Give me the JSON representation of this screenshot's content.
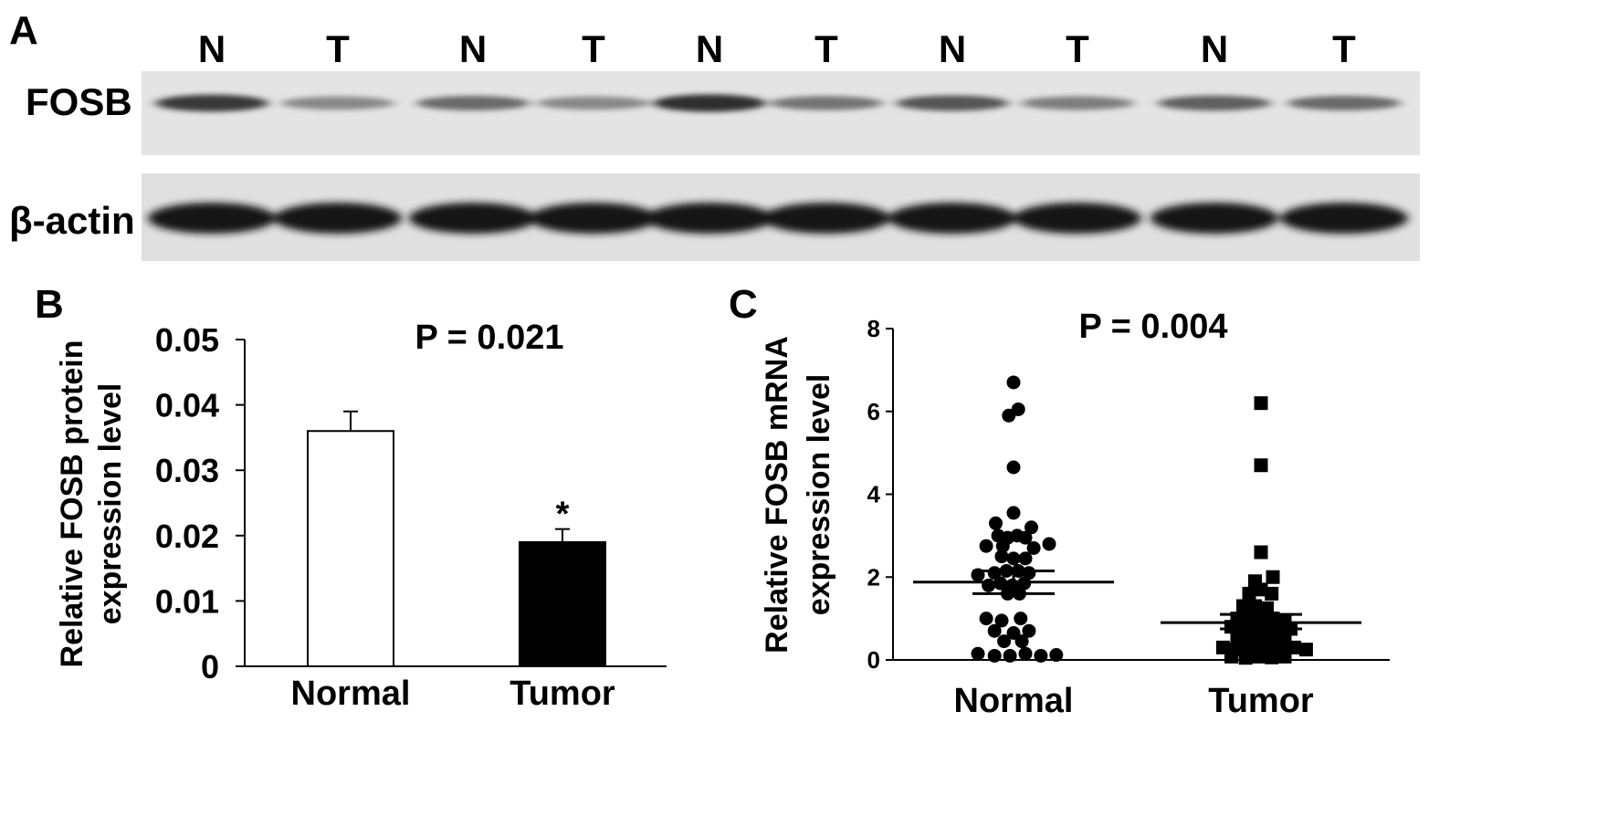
{
  "panel_a": {
    "letter": "A",
    "lanes": [
      "N",
      "T",
      "N",
      "T",
      "N",
      "T",
      "N",
      "T",
      "N",
      "T"
    ],
    "blots": [
      {
        "label": "FOSB",
        "band_intensity": [
          0.85,
          0.45,
          0.6,
          0.45,
          0.9,
          0.55,
          0.7,
          0.5,
          0.65,
          0.6
        ]
      },
      {
        "label": "β-actin",
        "band_intensity": [
          1,
          0.95,
          0.95,
          0.95,
          0.9,
          0.9,
          0.95,
          0.95,
          0.9,
          0.95
        ]
      }
    ]
  },
  "chart_data": [
    {
      "panel": "B",
      "type": "bar",
      "categories": [
        "Normal",
        "Tumor"
      ],
      "values": [
        0.036,
        0.019
      ],
      "errors": [
        0.003,
        0.002
      ],
      "bar_colors": [
        "#ffffff",
        "#000000"
      ],
      "ylim": [
        0,
        0.05
      ],
      "yticks": [
        "0",
        "0.01",
        "0.02",
        "0.03",
        "0.04",
        "0.05"
      ],
      "ylabel": [
        "Relative FOSB protein",
        "expression level"
      ],
      "annotation": "P = 0.021",
      "significance_marker": "*"
    },
    {
      "panel": "C",
      "type": "scatter",
      "categories": [
        "Normal",
        "Tumor"
      ],
      "ylim": [
        0,
        8
      ],
      "yticks": [
        "0",
        "2",
        "4",
        "6",
        "8"
      ],
      "ylabel": [
        "Relative FOSB mRNA",
        "expression level"
      ],
      "annotation": "P = 0.004",
      "series": [
        {
          "category": "Normal",
          "marker": "circle",
          "mean": 1.88,
          "sem": [
            1.6,
            2.15
          ],
          "points": [
            {
              "o": 0,
              "y": 6.7
            },
            {
              "o": -0.4,
              "y": 5.9
            },
            {
              "o": 0.4,
              "y": 6.05
            },
            {
              "o": 0,
              "y": 4.65
            },
            {
              "o": 0,
              "y": 3.55
            },
            {
              "o": -1.5,
              "y": 3.3
            },
            {
              "o": 1.5,
              "y": 3.2
            },
            {
              "o": -1.3,
              "y": 3.0
            },
            {
              "o": -0.5,
              "y": 2.95
            },
            {
              "o": 0.3,
              "y": 3.0
            },
            {
              "o": 1.0,
              "y": 2.95
            },
            {
              "o": -2.3,
              "y": 2.75
            },
            {
              "o": -0.9,
              "y": 2.75
            },
            {
              "o": 1.7,
              "y": 2.7
            },
            {
              "o": 3.0,
              "y": 2.8
            },
            {
              "o": -1.0,
              "y": 2.5
            },
            {
              "o": 0.0,
              "y": 2.45
            },
            {
              "o": 1.0,
              "y": 2.45
            },
            {
              "o": -1.6,
              "y": 2.1
            },
            {
              "o": -0.6,
              "y": 2.15
            },
            {
              "o": 0.4,
              "y": 2.15
            },
            {
              "o": 1.3,
              "y": 2.1
            },
            {
              "o": -3.0,
              "y": 2.05
            },
            {
              "o": -2.1,
              "y": 1.8
            },
            {
              "o": -1.1,
              "y": 1.85
            },
            {
              "o": -0.1,
              "y": 1.8
            },
            {
              "o": 0.9,
              "y": 1.85
            },
            {
              "o": -0.5,
              "y": 1.6
            },
            {
              "o": 0.5,
              "y": 1.6
            },
            {
              "o": -2.3,
              "y": 1.0
            },
            {
              "o": -1.0,
              "y": 0.95
            },
            {
              "o": 0.6,
              "y": 1.0
            },
            {
              "o": -1.6,
              "y": 0.7
            },
            {
              "o": 0.0,
              "y": 0.65
            },
            {
              "o": 1.3,
              "y": 0.7
            },
            {
              "o": -0.8,
              "y": 0.45
            },
            {
              "o": 0.7,
              "y": 0.45
            },
            {
              "o": -3.0,
              "y": 0.15
            },
            {
              "o": -1.6,
              "y": 0.1
            },
            {
              "o": -0.3,
              "y": 0.1
            },
            {
              "o": 1.0,
              "y": 0.15
            },
            {
              "o": 2.3,
              "y": 0.1
            },
            {
              "o": 3.6,
              "y": 0.12
            }
          ]
        },
        {
          "category": "Tumor",
          "marker": "square",
          "mean": 0.9,
          "sem": [
            0.75,
            1.1
          ],
          "points": [
            {
              "o": 0,
              "y": 6.2
            },
            {
              "o": 0,
              "y": 4.7
            },
            {
              "o": 0,
              "y": 2.6
            },
            {
              "o": -0.5,
              "y": 1.9
            },
            {
              "o": 1.0,
              "y": 2.0
            },
            {
              "o": -1.0,
              "y": 1.6
            },
            {
              "o": 0.0,
              "y": 1.7
            },
            {
              "o": 0.9,
              "y": 1.6
            },
            {
              "o": -1.5,
              "y": 1.3
            },
            {
              "o": -0.5,
              "y": 1.3
            },
            {
              "o": 0.5,
              "y": 1.25
            },
            {
              "o": -2.0,
              "y": 1.0
            },
            {
              "o": -1.0,
              "y": 1.05
            },
            {
              "o": 0.0,
              "y": 1.0
            },
            {
              "o": 1.0,
              "y": 1.0
            },
            {
              "o": 2.0,
              "y": 0.95
            },
            {
              "o": -2.5,
              "y": 0.8
            },
            {
              "o": -1.5,
              "y": 0.75
            },
            {
              "o": -0.5,
              "y": 0.75
            },
            {
              "o": 0.5,
              "y": 0.75
            },
            {
              "o": 1.5,
              "y": 0.8
            },
            {
              "o": 2.5,
              "y": 0.75
            },
            {
              "o": -2.0,
              "y": 0.5
            },
            {
              "o": -1.0,
              "y": 0.5
            },
            {
              "o": 0.0,
              "y": 0.55
            },
            {
              "o": 1.0,
              "y": 0.5
            },
            {
              "o": 2.0,
              "y": 0.5
            },
            {
              "o": -3.2,
              "y": 0.3
            },
            {
              "o": -2.2,
              "y": 0.25
            },
            {
              "o": -1.2,
              "y": 0.3
            },
            {
              "o": -0.2,
              "y": 0.25
            },
            {
              "o": 0.8,
              "y": 0.3
            },
            {
              "o": 1.8,
              "y": 0.25
            },
            {
              "o": 2.8,
              "y": 0.3
            },
            {
              "o": 3.8,
              "y": 0.25
            },
            {
              "o": -2.5,
              "y": 0.08
            },
            {
              "o": -1.3,
              "y": 0.05
            },
            {
              "o": -0.2,
              "y": 0.08
            },
            {
              "o": 0.9,
              "y": 0.06
            },
            {
              "o": 2.0,
              "y": 0.08
            }
          ]
        }
      ]
    }
  ]
}
